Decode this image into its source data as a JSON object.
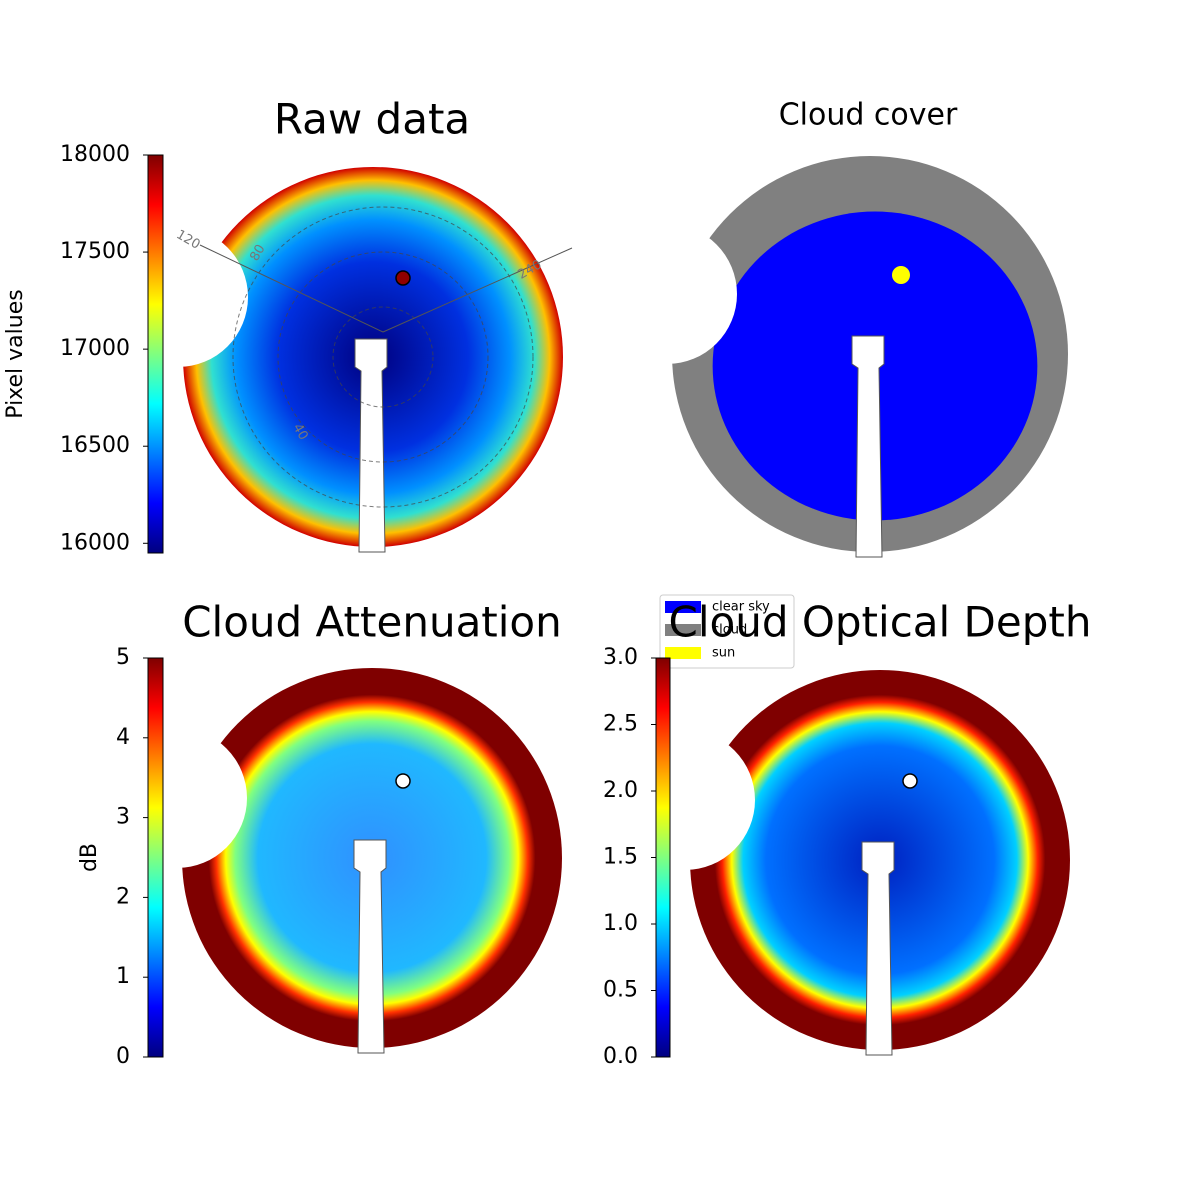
{
  "chart_data": [
    {
      "type": "image",
      "title": "Raw data",
      "colormap": "jet",
      "ylabel": "Pixel values",
      "ylim": [
        15950,
        18000
      ],
      "yticks": [
        16000,
        16500,
        17000,
        17500,
        18000
      ],
      "polar_labels": [
        "120",
        "80",
        "240",
        "40"
      ]
    },
    {
      "type": "image",
      "title": "Cloud cover",
      "series": [
        {
          "name": "clear sky",
          "color": "#0000ff"
        },
        {
          "name": "cloud",
          "color": "#808080"
        },
        {
          "name": "sun",
          "color": "#ffff00"
        }
      ]
    },
    {
      "type": "image",
      "title": "Cloud Attenuation",
      "colormap": "jet",
      "ylabel": "dB",
      "ylim": [
        0,
        5
      ],
      "yticks": [
        0,
        1,
        2,
        3,
        4,
        5
      ]
    },
    {
      "type": "image",
      "title": "Cloud Optical Depth",
      "colormap": "jet",
      "ylim": [
        0,
        3
      ],
      "yticks": [
        {
          "value": 0,
          "label": "0.0"
        },
        0.5,
        {
          "value": 1,
          "label": "1.0"
        },
        1.5,
        {
          "value": 2,
          "label": "2.0"
        },
        2.5,
        {
          "value": 3,
          "label": "3.0"
        }
      ]
    }
  ]
}
